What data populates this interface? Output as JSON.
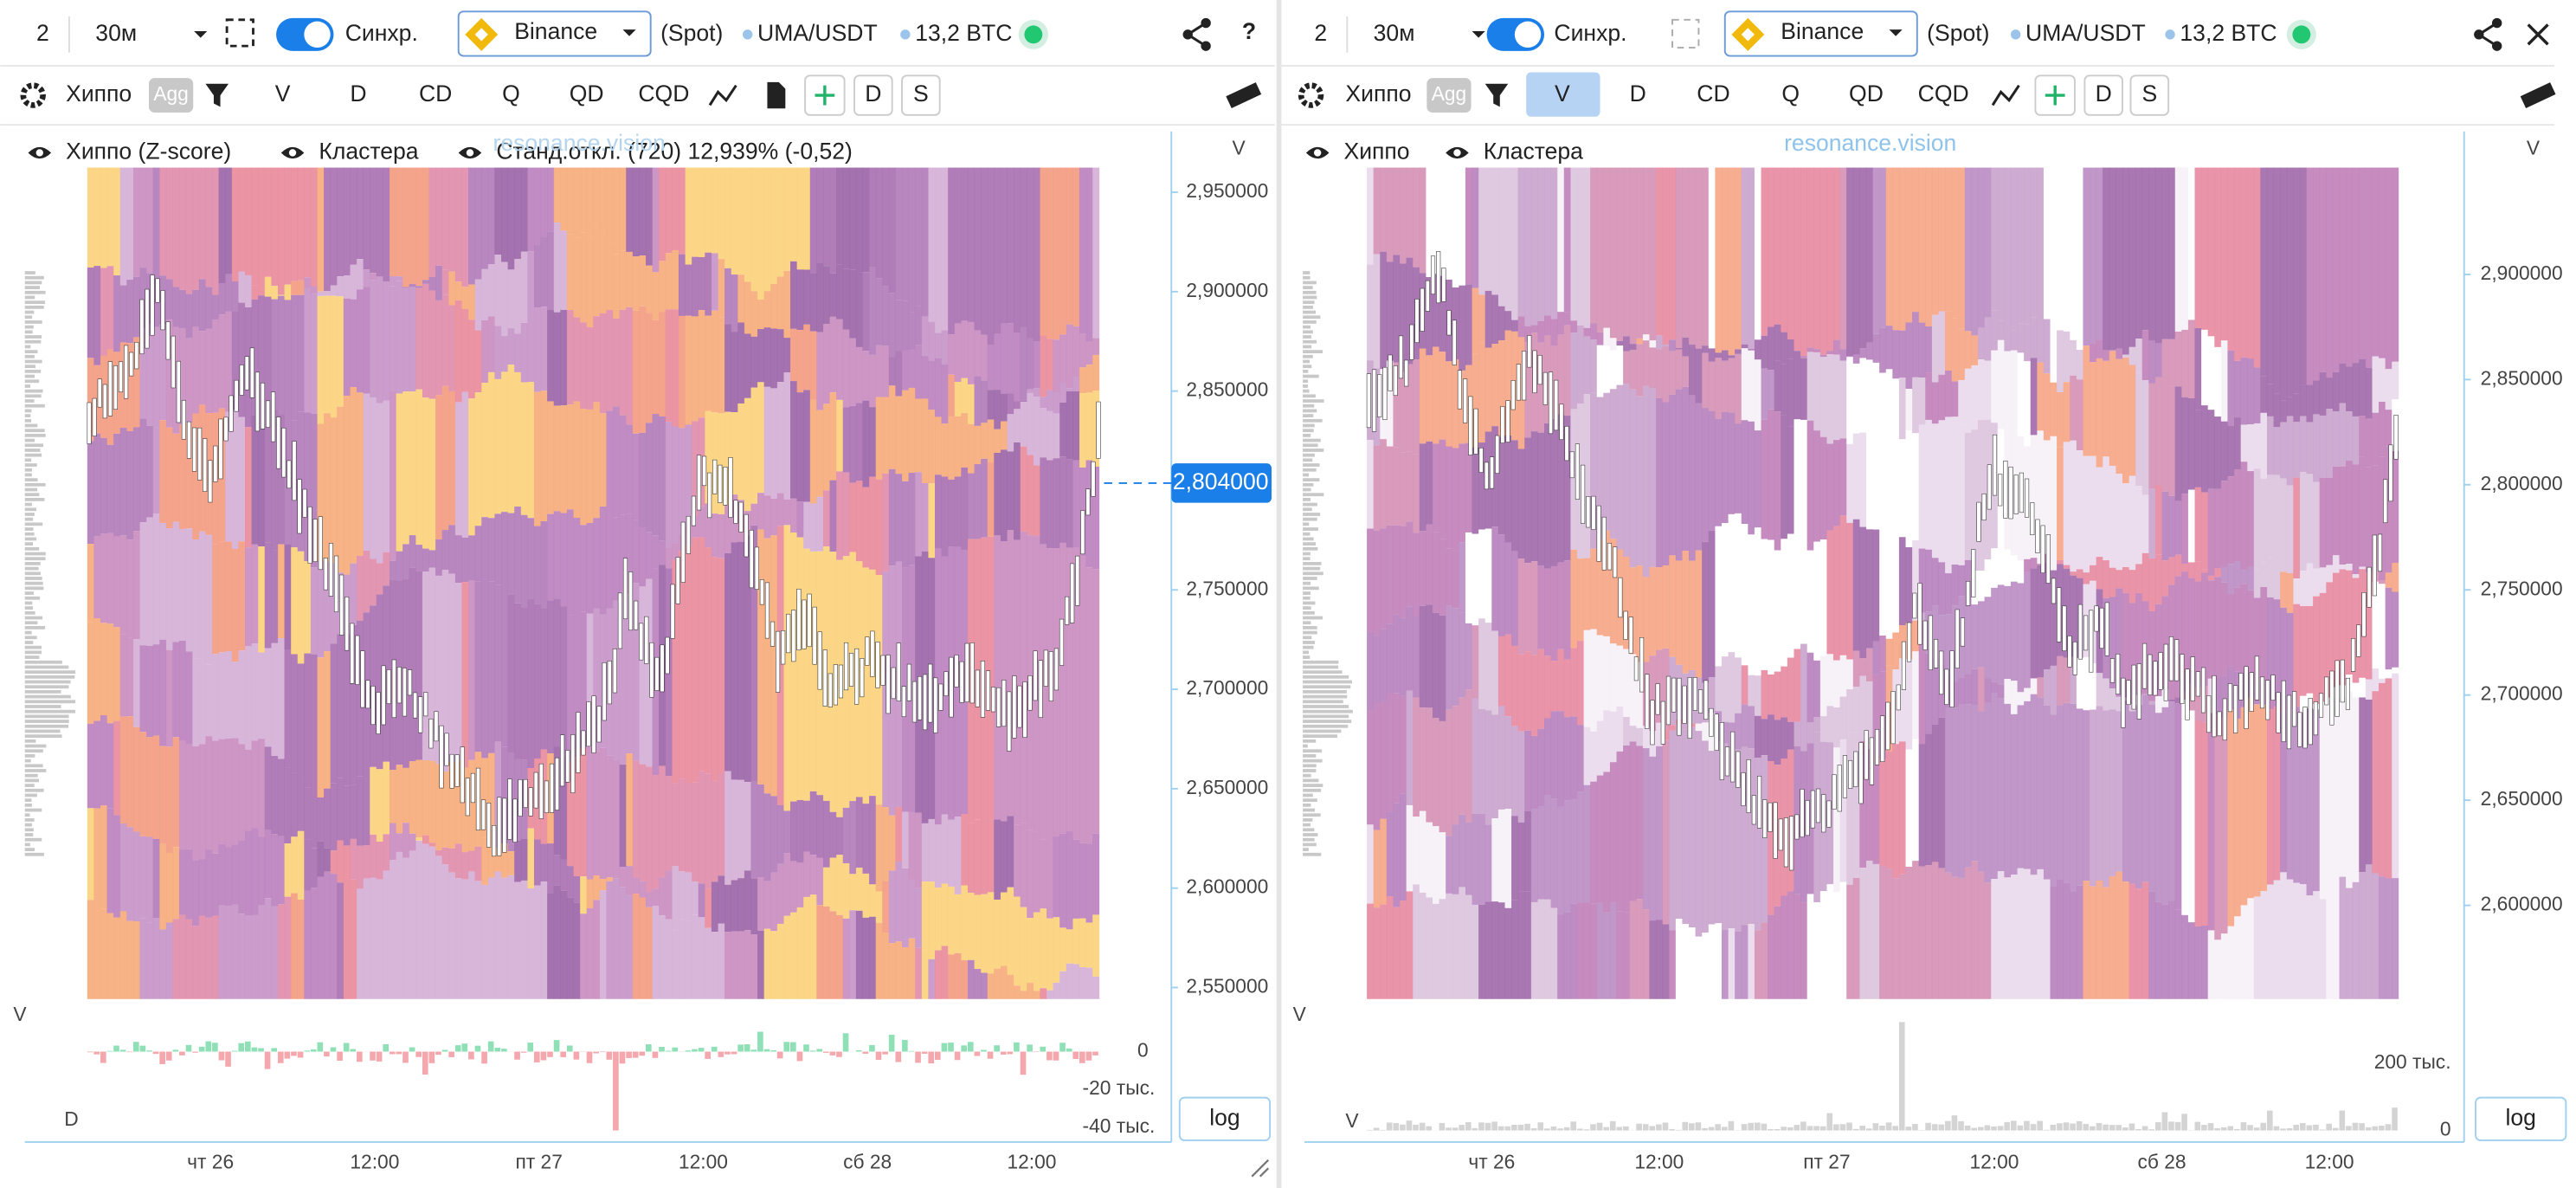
{
  "panels": [
    {
      "header": {
        "layout": "2",
        "interval": "30м",
        "sync": "Синхр.",
        "exchange": "Binance",
        "market": "(Spot)",
        "pair": "UMA/USDT",
        "volume": "13,2 BTC",
        "help": "?"
      },
      "toolbar": {
        "indicator": "Хиппо",
        "agg": "Agg",
        "buttons": [
          "V",
          "D",
          "CD",
          "Q",
          "QD",
          "CQD"
        ],
        "boxes": [
          "D",
          "S"
        ]
      },
      "legend": [
        "Хиппо (Z-score)",
        "Кластера",
        "Станд.откл. (720) 12,939% (-0,52)"
      ],
      "watermark": "resonance.vision",
      "price_axis": {
        "label": "V",
        "ticks": [
          "2,950000",
          "2,900000",
          "2,850000",
          "2,800000",
          "2,750000",
          "2,700000",
          "2,650000",
          "2,600000",
          "2,550000"
        ],
        "current": "2,804000"
      },
      "volume_pane": {
        "label": "V",
        "ticks": [
          "0",
          "-20 тыс.",
          "-40 тыс."
        ],
        "sub_label": "D"
      },
      "log": "log",
      "time_axis": [
        "чт 26",
        "12:00",
        "пт 27",
        "12:00",
        "сб 28",
        "12:00"
      ]
    },
    {
      "header": {
        "layout": "2",
        "interval": "30м",
        "sync": "Синхр.",
        "exchange": "Binance",
        "market": "(Spot)",
        "pair": "UMA/USDT",
        "volume": "13,2 BTC"
      },
      "toolbar": {
        "indicator": "Хиппо",
        "agg": "Agg",
        "buttons": [
          "V",
          "D",
          "CD",
          "Q",
          "QD",
          "CQD"
        ],
        "boxes": [
          "D",
          "S"
        ]
      },
      "legend": [
        "Хиппо",
        "Кластера"
      ],
      "watermark": "resonance.vision",
      "price_axis": {
        "label": "V",
        "ticks": [
          "2,900000",
          "2,850000",
          "2,800000",
          "2,750000",
          "2,700000",
          "2,650000",
          "2,600000"
        ]
      },
      "volume_pane": {
        "label": "V",
        "ticks": [
          "200 тыс.",
          "0"
        ],
        "sub_label": "V"
      },
      "log": "log",
      "time_axis": [
        "чт 26",
        "12:00",
        "пт 27",
        "12:00",
        "сб 28",
        "12:00"
      ]
    }
  ]
}
